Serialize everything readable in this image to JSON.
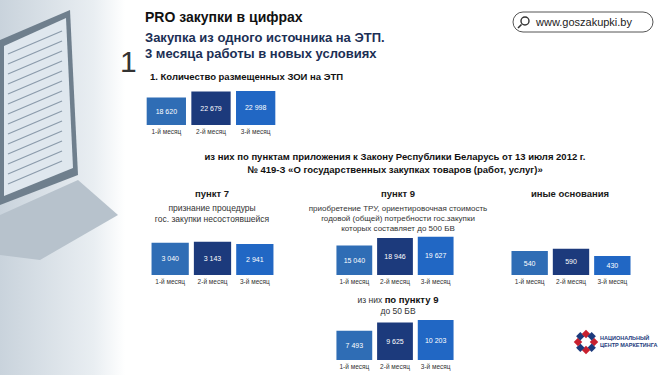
{
  "header": {
    "number": "1",
    "title": "PRO закупки в цифрах",
    "subtitle": [
      "Закупка из одного источника на ЭТП.",
      "3 месяца работы в новых условиях"
    ],
    "url": "www.goszakupki.by",
    "section_heading": [
      "из них по пунктам приложения к Закону Республики Беларусь от 13 июля 2012 г.",
      "№ 419-З «О государственных закупках товаров (работ, услуг)»"
    ],
    "logo_text": [
      "НАЦИОНАЛЬНЫЙ",
      "ЦЕНТР МАРКЕТИНГА"
    ]
  },
  "chart_data": [
    {
      "type": "bar",
      "title": "1. Количество размещенных ЗОИ на ЭТП",
      "categories": [
        "1-й месяц",
        "2-й месяц",
        "3-й месяц"
      ],
      "values": [
        18620,
        22679,
        22998
      ],
      "value_labels": [
        "18 620",
        "22 679",
        "22 998"
      ],
      "colors": [
        "#2f6db5",
        "#1c3a7c",
        "#2167c4"
      ],
      "ylim": [
        0,
        25000
      ],
      "data_labels": true,
      "tick_labels": "x",
      "grid": false
    },
    {
      "type": "bar",
      "title": "пункт 7",
      "subtitle": [
        "признание процедуры",
        "гос. закупки несостоявшейся"
      ],
      "categories": [
        "1-й месяц",
        "2-й месяц",
        "3-й месяц"
      ],
      "values": [
        3040,
        3143,
        2941
      ],
      "value_labels": [
        "3 040",
        "3 143",
        "2 941"
      ],
      "colors": [
        "#2f6db5",
        "#1c3a7c",
        "#2167c4"
      ],
      "ylim": [
        0,
        3500
      ],
      "data_labels": true,
      "tick_labels": "x",
      "grid": false
    },
    {
      "type": "bar",
      "title": "пункт 9",
      "subtitle": [
        "приобретение ТРУ, ориентировочная стоимость",
        "годовой (общей) потребности гос.закупки",
        "которых составляет до 500 БВ"
      ],
      "categories": [
        "1-й месяц",
        "2-й месяц",
        "3-й месяц"
      ],
      "values": [
        15040,
        18946,
        19627
      ],
      "value_labels": [
        "15 040",
        "18 946",
        "19 627"
      ],
      "colors": [
        "#2f6db5",
        "#1c3a7c",
        "#2167c4"
      ],
      "ylim": [
        0,
        22000
      ],
      "data_labels": true,
      "tick_labels": "x",
      "grid": false
    },
    {
      "type": "bar",
      "title": "иные основания",
      "categories": [
        "1-й месяц",
        "2-й месяц",
        "3-й месяц"
      ],
      "values": [
        540,
        590,
        430
      ],
      "colors": [
        "#2f6db5",
        "#1c3a7c",
        "#2167c4"
      ],
      "ylim": [
        0,
        700
      ],
      "data_labels": true,
      "tick_labels": "x",
      "grid": false
    },
    {
      "type": "bar",
      "title": "по пункту 9",
      "annotations": {
        "prefix": "из них",
        "note": "до 50 БВ"
      },
      "categories": [
        "1-й месяц",
        "2-й месяц",
        "3-й месяц"
      ],
      "values": [
        7493,
        9625,
        10203
      ],
      "value_labels": [
        "7 493",
        "9 625",
        "10 203"
      ],
      "colors": [
        "#2f6db5",
        "#1c3a7c",
        "#2167c4"
      ],
      "ylim": [
        0,
        11000
      ],
      "data_labels": true,
      "tick_labels": "x",
      "grid": false
    }
  ]
}
